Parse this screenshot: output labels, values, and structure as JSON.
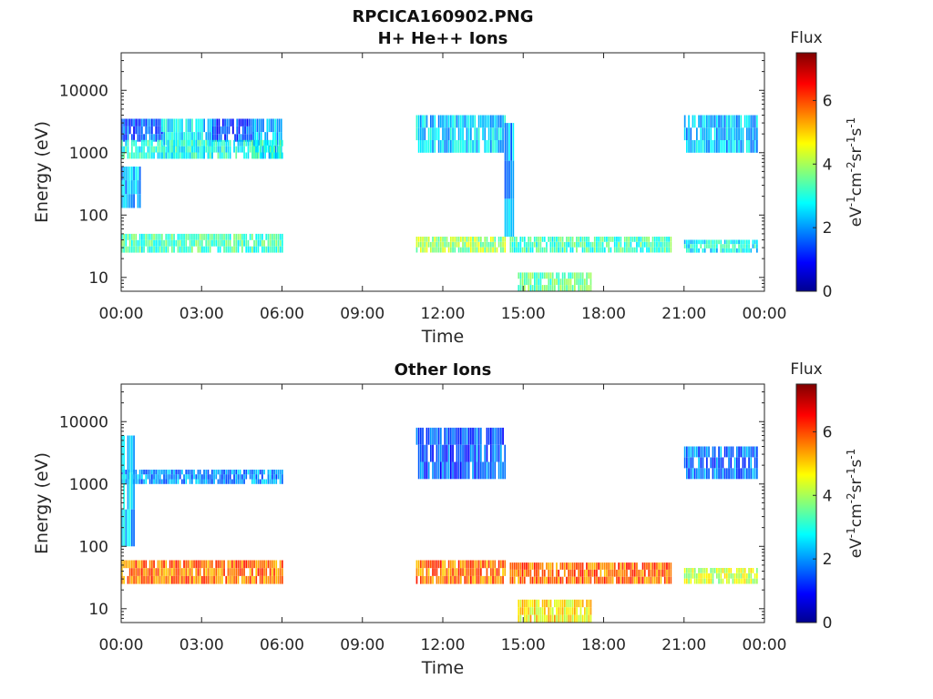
{
  "figure": {
    "title": "RPCICA160902.PNG"
  },
  "chart_data": [
    {
      "type": "heatmap",
      "title": "H+ He++ Ions",
      "xlabel": "Time",
      "ylabel": "Energy (eV)",
      "x_tick_labels": [
        "00:00",
        "03:00",
        "06:00",
        "09:00",
        "12:00",
        "15:00",
        "18:00",
        "21:00",
        "00:00"
      ],
      "x_ticks_hours": [
        0,
        3,
        6,
        9,
        12,
        15,
        18,
        21,
        24
      ],
      "xlim_hours": [
        0,
        24
      ],
      "y_scale": "log",
      "y_tick_labels": [
        "10",
        "100",
        "1000",
        "10000"
      ],
      "y_ticks": [
        10,
        100,
        1000,
        10000
      ],
      "ylim": [
        6,
        40000
      ],
      "colorbar": {
        "title": "Flux",
        "label": "eV-1cm-2sr-1s-1",
        "colormap": "jet",
        "range": [
          0,
          7.5
        ],
        "tick_labels": [
          "0",
          "2",
          "4",
          "6"
        ],
        "ticks": [
          0,
          2,
          4,
          6
        ]
      },
      "data_gaps_hours": [
        [
          6.0,
          11.0
        ],
        [
          20.5,
          21.0
        ]
      ],
      "bands": [
        {
          "t": [
            0.0,
            6.0
          ],
          "e": [
            25,
            50
          ],
          "level": 3.3
        },
        {
          "t": [
            0.0,
            1.5
          ],
          "e": [
            1500,
            3500
          ],
          "level": 1.6
        },
        {
          "t": [
            1.5,
            3.4
          ],
          "e": [
            800,
            3500
          ],
          "level": 2.6
        },
        {
          "t": [
            3.4,
            4.9
          ],
          "e": [
            1500,
            3500
          ],
          "level": 1.5
        },
        {
          "t": [
            4.9,
            6.0
          ],
          "e": [
            800,
            3500
          ],
          "level": 2.4
        },
        {
          "t": [
            0.0,
            6.0
          ],
          "e": [
            800,
            1600
          ],
          "level": 3.0
        },
        {
          "t": [
            0.0,
            0.7
          ],
          "e": [
            130,
            600
          ],
          "level": 2.3
        },
        {
          "t": [
            11.0,
            14.3
          ],
          "e": [
            25,
            45
          ],
          "level": 4.0
        },
        {
          "t": [
            11.0,
            14.3
          ],
          "e": [
            1000,
            4000
          ],
          "level": 2.5
        },
        {
          "t": [
            14.3,
            14.6
          ],
          "e": [
            45,
            3000
          ],
          "level": 2.2
        },
        {
          "t": [
            14.5,
            20.5
          ],
          "e": [
            25,
            45
          ],
          "level": 3.3
        },
        {
          "t": [
            14.8,
            17.5
          ],
          "e": [
            6,
            12
          ],
          "level": 3.5
        },
        {
          "t": [
            21.0,
            23.7
          ],
          "e": [
            25,
            40
          ],
          "level": 2.8
        },
        {
          "t": [
            21.0,
            23.7
          ],
          "e": [
            1000,
            4000
          ],
          "level": 2.4
        }
      ]
    },
    {
      "type": "heatmap",
      "title": "Other Ions",
      "xlabel": "Time",
      "ylabel": "Energy (eV)",
      "x_tick_labels": [
        "00:00",
        "03:00",
        "06:00",
        "09:00",
        "12:00",
        "15:00",
        "18:00",
        "21:00",
        "00:00"
      ],
      "x_ticks_hours": [
        0,
        3,
        6,
        9,
        12,
        15,
        18,
        21,
        24
      ],
      "xlim_hours": [
        0,
        24
      ],
      "y_scale": "log",
      "y_tick_labels": [
        "10",
        "100",
        "1000",
        "10000"
      ],
      "y_ticks": [
        10,
        100,
        1000,
        10000
      ],
      "ylim": [
        6,
        40000
      ],
      "colorbar": {
        "title": "Flux",
        "label": "eV-1cm-2sr-1s-1",
        "colormap": "jet",
        "range": [
          0,
          7.5
        ],
        "tick_labels": [
          "0",
          "2",
          "4",
          "6"
        ],
        "ticks": [
          0,
          2,
          4,
          6
        ]
      },
      "data_gaps_hours": [
        [
          6.0,
          11.0
        ],
        [
          20.5,
          21.0
        ]
      ],
      "bands": [
        {
          "t": [
            0.0,
            6.0
          ],
          "e": [
            25,
            60
          ],
          "level": 5.7
        },
        {
          "t": [
            0.0,
            6.0
          ],
          "e": [
            1000,
            1700
          ],
          "level": 2.0
        },
        {
          "t": [
            0.0,
            0.5
          ],
          "e": [
            100,
            6000
          ],
          "level": 2.4
        },
        {
          "t": [
            11.0,
            14.3
          ],
          "e": [
            25,
            60
          ],
          "level": 5.7
        },
        {
          "t": [
            11.0,
            14.3
          ],
          "e": [
            1200,
            8000
          ],
          "level": 1.6
        },
        {
          "t": [
            14.5,
            20.5
          ],
          "e": [
            25,
            55
          ],
          "level": 5.8
        },
        {
          "t": [
            14.8,
            17.5
          ],
          "e": [
            6,
            14
          ],
          "level": 4.8
        },
        {
          "t": [
            21.0,
            23.7
          ],
          "e": [
            25,
            45
          ],
          "level": 4.3
        },
        {
          "t": [
            21.0,
            23.7
          ],
          "e": [
            1200,
            4000
          ],
          "level": 1.8
        }
      ]
    }
  ]
}
